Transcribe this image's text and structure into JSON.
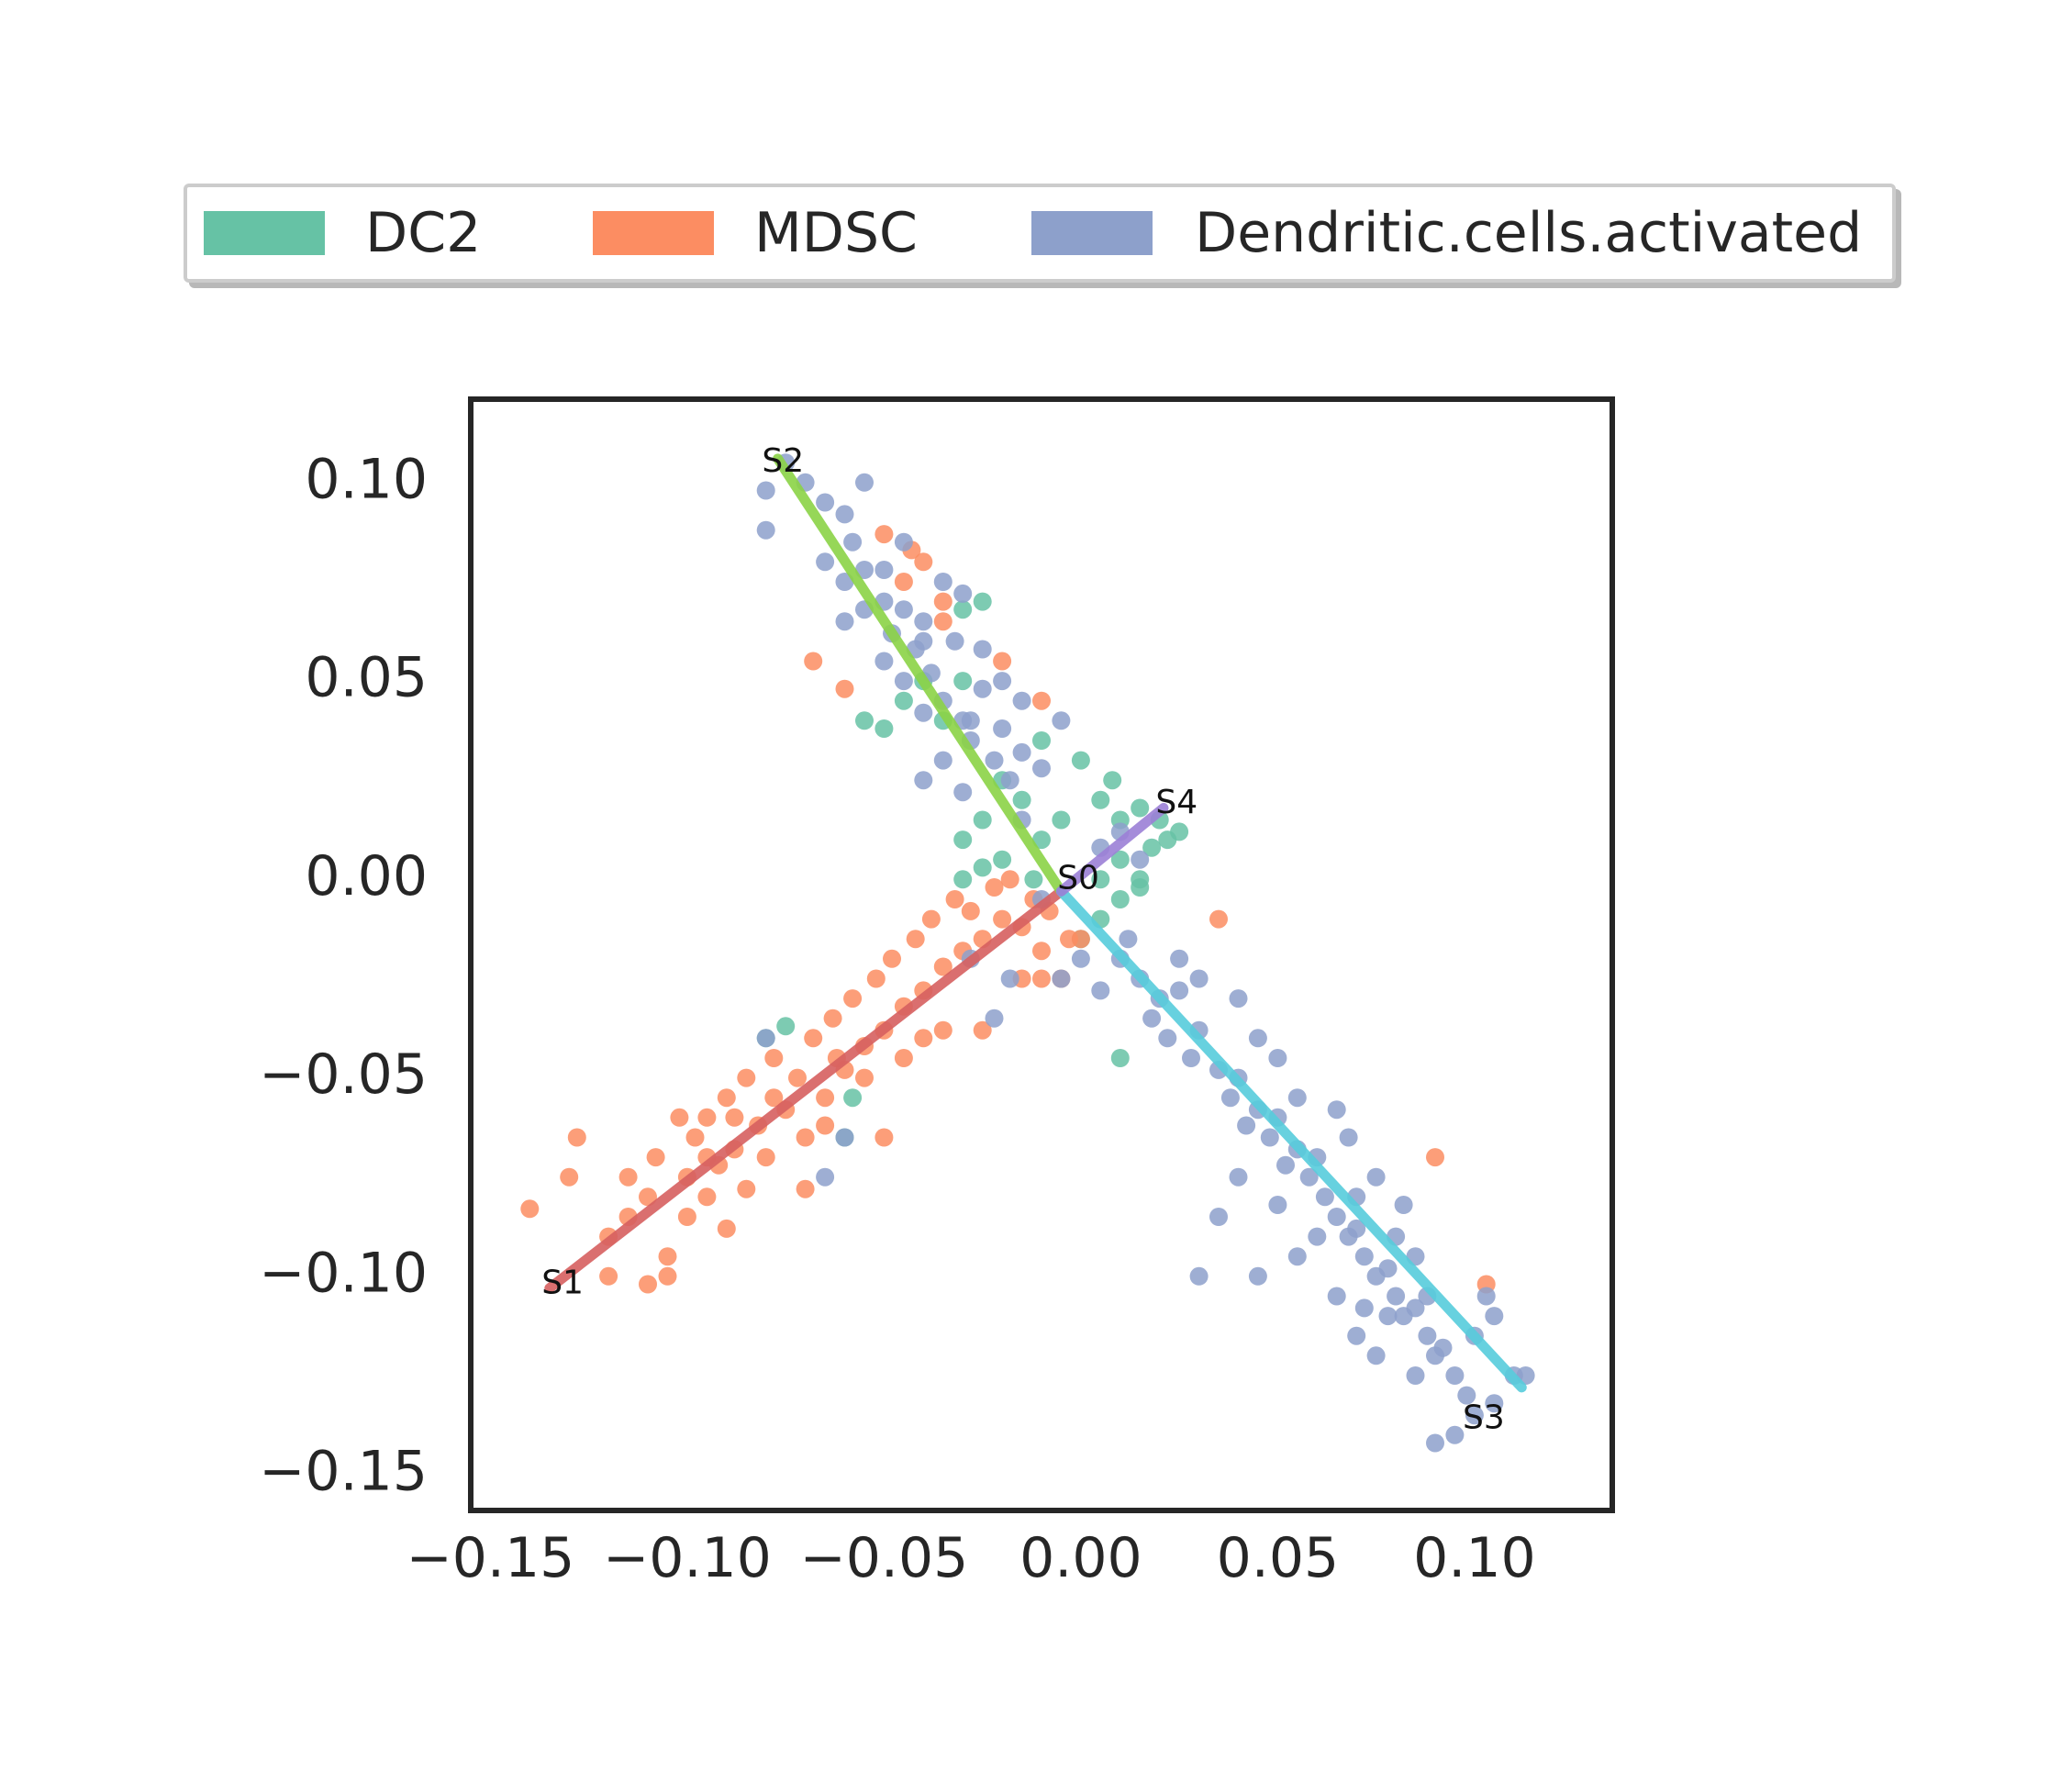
{
  "chart_data": {
    "type": "scatter",
    "title": "",
    "xlabel": "",
    "ylabel": "",
    "xlim": [
      -0.155,
      0.135
    ],
    "ylim": [
      -0.159,
      0.121
    ],
    "x_ticks": [
      -0.15,
      -0.1,
      -0.05,
      0.0,
      0.05,
      0.1
    ],
    "y_ticks": [
      -0.15,
      -0.1,
      -0.05,
      0.0,
      0.05,
      0.1
    ],
    "x_tick_labels": [
      "−0.15",
      "−0.10",
      "−0.05",
      "0.00",
      "0.05",
      "0.10"
    ],
    "y_tick_labels": [
      "−0.15",
      "−0.10",
      "−0.05",
      "0.00",
      "0.05",
      "0.10"
    ],
    "grid": false,
    "legend_position": "top-center",
    "legend": [
      {
        "name": "DC2",
        "color": "#66c2a5"
      },
      {
        "name": "MDSC",
        "color": "#fc8d62"
      },
      {
        "name": "Dendritic.cells.activated",
        "color": "#8da0cb"
      }
    ],
    "series": [
      {
        "name": "DC2",
        "color": "#66c2a5",
        "points": [
          [
            -0.03,
            0.05
          ],
          [
            -0.045,
            0.045
          ],
          [
            -0.055,
            0.04
          ],
          [
            -0.01,
            0.035
          ],
          [
            0.0,
            0.03
          ],
          [
            -0.02,
            0.025
          ],
          [
            -0.015,
            0.02
          ],
          [
            -0.025,
            0.015
          ],
          [
            -0.03,
            0.01
          ],
          [
            -0.02,
            0.005
          ],
          [
            -0.01,
            0.01
          ],
          [
            -0.005,
            0.015
          ],
          [
            0.005,
            0.02
          ],
          [
            0.01,
            0.015
          ],
          [
            0.015,
            0.018
          ],
          [
            0.02,
            0.015
          ],
          [
            0.022,
            0.01
          ],
          [
            0.025,
            0.012
          ],
          [
            0.018,
            0.008
          ],
          [
            0.01,
            0.005
          ],
          [
            0.005,
            0.0
          ],
          [
            0.01,
            -0.005
          ],
          [
            0.015,
            -0.002
          ],
          [
            -0.025,
            0.003
          ],
          [
            -0.03,
            0.0
          ],
          [
            0.0,
            -0.015
          ],
          [
            0.005,
            -0.01
          ],
          [
            -0.075,
            -0.037
          ],
          [
            -0.08,
            -0.04
          ],
          [
            -0.06,
            -0.065
          ],
          [
            -0.058,
            -0.055
          ],
          [
            0.01,
            -0.045
          ],
          [
            -0.035,
            0.04
          ],
          [
            -0.03,
            0.068
          ],
          [
            -0.025,
            0.07
          ],
          [
            -0.04,
            0.05
          ],
          [
            -0.05,
            0.038
          ],
          [
            0.015,
            0.0
          ],
          [
            -0.012,
            0.0
          ],
          [
            0.008,
            0.025
          ]
        ]
      },
      {
        "name": "MDSC",
        "color": "#fc8d62",
        "points": [
          [
            -0.14,
            -0.083
          ],
          [
            -0.13,
            -0.075
          ],
          [
            -0.128,
            -0.065
          ],
          [
            -0.12,
            -0.09
          ],
          [
            -0.115,
            -0.085
          ],
          [
            -0.11,
            -0.08
          ],
          [
            -0.108,
            -0.07
          ],
          [
            -0.105,
            -0.095
          ],
          [
            -0.1,
            -0.085
          ],
          [
            -0.1,
            -0.075
          ],
          [
            -0.098,
            -0.065
          ],
          [
            -0.095,
            -0.08
          ],
          [
            -0.095,
            -0.06
          ],
          [
            -0.092,
            -0.072
          ],
          [
            -0.09,
            -0.088
          ],
          [
            -0.09,
            -0.055
          ],
          [
            -0.088,
            -0.068
          ],
          [
            -0.085,
            -0.078
          ],
          [
            -0.085,
            -0.05
          ],
          [
            -0.082,
            -0.062
          ],
          [
            -0.08,
            -0.07
          ],
          [
            -0.078,
            -0.045
          ],
          [
            -0.075,
            -0.058
          ],
          [
            -0.072,
            -0.05
          ],
          [
            -0.07,
            -0.065
          ],
          [
            -0.068,
            -0.04
          ],
          [
            -0.065,
            -0.055
          ],
          [
            -0.063,
            -0.035
          ],
          [
            -0.06,
            -0.048
          ],
          [
            -0.058,
            -0.03
          ],
          [
            -0.055,
            -0.042
          ],
          [
            -0.052,
            -0.025
          ],
          [
            -0.05,
            -0.038
          ],
          [
            -0.048,
            -0.02
          ],
          [
            -0.045,
            -0.032
          ],
          [
            -0.042,
            -0.015
          ],
          [
            -0.04,
            -0.028
          ],
          [
            -0.038,
            -0.01
          ],
          [
            -0.035,
            -0.022
          ],
          [
            -0.032,
            -0.005
          ],
          [
            -0.03,
            -0.018
          ],
          [
            -0.028,
            -0.008
          ],
          [
            -0.025,
            -0.015
          ],
          [
            -0.022,
            -0.002
          ],
          [
            -0.02,
            -0.01
          ],
          [
            -0.018,
            0.0
          ],
          [
            -0.015,
            -0.012
          ],
          [
            -0.012,
            -0.005
          ],
          [
            -0.01,
            -0.018
          ],
          [
            -0.008,
            -0.008
          ],
          [
            -0.005,
            -0.025
          ],
          [
            -0.003,
            -0.015
          ],
          [
            -0.12,
            -0.1
          ],
          [
            -0.11,
            -0.102
          ],
          [
            -0.105,
            -0.1
          ],
          [
            -0.065,
            -0.062
          ],
          [
            -0.07,
            -0.078
          ],
          [
            -0.055,
            -0.05
          ],
          [
            -0.05,
            -0.065
          ],
          [
            -0.04,
            -0.04
          ],
          [
            -0.035,
            -0.038
          ],
          [
            -0.025,
            -0.038
          ],
          [
            -0.01,
            -0.025
          ],
          [
            0.0,
            -0.015
          ],
          [
            0.035,
            -0.01
          ],
          [
            -0.05,
            0.087
          ],
          [
            -0.043,
            0.083
          ],
          [
            -0.04,
            0.08
          ],
          [
            -0.045,
            0.075
          ],
          [
            -0.035,
            0.065
          ],
          [
            -0.035,
            0.07
          ],
          [
            -0.068,
            0.055
          ],
          [
            -0.06,
            0.048
          ],
          [
            -0.01,
            0.045
          ],
          [
            -0.02,
            0.055
          ],
          [
            0.09,
            -0.07
          ],
          [
            0.103,
            -0.102
          ],
          [
            -0.095,
            -0.07
          ],
          [
            -0.088,
            -0.06
          ],
          [
            -0.078,
            -0.055
          ],
          [
            -0.115,
            -0.075
          ],
          [
            -0.102,
            -0.06
          ],
          [
            -0.062,
            -0.045
          ],
          [
            -0.045,
            -0.045
          ],
          [
            -0.015,
            -0.025
          ]
        ]
      },
      {
        "name": "Dendritic.cells.activated",
        "color": "#8da0cb",
        "points": [
          [
            -0.075,
            0.105
          ],
          [
            -0.08,
            0.098
          ],
          [
            -0.07,
            0.1
          ],
          [
            -0.065,
            0.095
          ],
          [
            -0.06,
            0.092
          ],
          [
            -0.055,
            0.1
          ],
          [
            -0.058,
            0.085
          ],
          [
            -0.065,
            0.08
          ],
          [
            -0.06,
            0.075
          ],
          [
            -0.055,
            0.078
          ],
          [
            -0.05,
            0.07
          ],
          [
            -0.055,
            0.068
          ],
          [
            -0.06,
            0.065
          ],
          [
            -0.048,
            0.062
          ],
          [
            -0.045,
            0.068
          ],
          [
            -0.042,
            0.058
          ],
          [
            -0.05,
            0.055
          ],
          [
            -0.045,
            0.05
          ],
          [
            -0.04,
            0.06
          ],
          [
            -0.038,
            0.052
          ],
          [
            -0.035,
            0.045
          ],
          [
            -0.04,
            0.042
          ],
          [
            -0.03,
            0.04
          ],
          [
            -0.025,
            0.048
          ],
          [
            -0.028,
            0.035
          ],
          [
            -0.02,
            0.038
          ],
          [
            -0.022,
            0.03
          ],
          [
            -0.015,
            0.032
          ],
          [
            -0.018,
            0.025
          ],
          [
            -0.01,
            0.028
          ],
          [
            -0.045,
            0.085
          ],
          [
            -0.05,
            0.078
          ],
          [
            -0.035,
            0.075
          ],
          [
            -0.03,
            0.072
          ],
          [
            -0.04,
            0.065
          ],
          [
            -0.032,
            0.06
          ],
          [
            -0.025,
            0.058
          ],
          [
            -0.02,
            0.05
          ],
          [
            -0.015,
            0.045
          ],
          [
            -0.028,
            0.04
          ],
          [
            -0.035,
            0.03
          ],
          [
            -0.03,
            0.022
          ],
          [
            -0.04,
            0.025
          ],
          [
            -0.015,
            0.015
          ],
          [
            -0.005,
            0.04
          ],
          [
            0.01,
            -0.02
          ],
          [
            0.015,
            -0.025
          ],
          [
            0.02,
            -0.03
          ],
          [
            0.025,
            -0.028
          ],
          [
            0.018,
            -0.035
          ],
          [
            0.022,
            -0.04
          ],
          [
            0.028,
            -0.045
          ],
          [
            0.03,
            -0.038
          ],
          [
            0.035,
            -0.048
          ],
          [
            0.038,
            -0.055
          ],
          [
            0.04,
            -0.05
          ],
          [
            0.045,
            -0.058
          ],
          [
            0.042,
            -0.062
          ],
          [
            0.048,
            -0.065
          ],
          [
            0.05,
            -0.06
          ],
          [
            0.055,
            -0.068
          ],
          [
            0.052,
            -0.072
          ],
          [
            0.058,
            -0.075
          ],
          [
            0.06,
            -0.07
          ],
          [
            0.062,
            -0.08
          ],
          [
            0.065,
            -0.085
          ],
          [
            0.068,
            -0.09
          ],
          [
            0.07,
            -0.088
          ],
          [
            0.072,
            -0.095
          ],
          [
            0.075,
            -0.1
          ],
          [
            0.078,
            -0.098
          ],
          [
            0.08,
            -0.105
          ],
          [
            0.082,
            -0.11
          ],
          [
            0.085,
            -0.108
          ],
          [
            0.088,
            -0.115
          ],
          [
            0.09,
            -0.12
          ],
          [
            0.092,
            -0.118
          ],
          [
            0.095,
            -0.125
          ],
          [
            0.098,
            -0.13
          ],
          [
            0.1,
            -0.135
          ],
          [
            0.095,
            -0.14
          ],
          [
            0.09,
            -0.142
          ],
          [
            0.105,
            -0.132
          ],
          [
            0.11,
            -0.125
          ],
          [
            0.113,
            -0.125
          ],
          [
            0.105,
            -0.11
          ],
          [
            0.1,
            -0.115
          ],
          [
            0.103,
            -0.105
          ],
          [
            0.085,
            -0.095
          ],
          [
            0.08,
            -0.09
          ],
          [
            0.07,
            -0.08
          ],
          [
            0.06,
            -0.09
          ],
          [
            0.05,
            -0.082
          ],
          [
            0.04,
            -0.075
          ],
          [
            0.035,
            -0.085
          ],
          [
            0.03,
            -0.1
          ],
          [
            0.045,
            -0.1
          ],
          [
            0.055,
            -0.095
          ],
          [
            0.065,
            -0.105
          ],
          [
            0.07,
            -0.115
          ],
          [
            0.072,
            -0.108
          ],
          [
            0.075,
            -0.12
          ],
          [
            0.078,
            -0.11
          ],
          [
            0.085,
            -0.125
          ],
          [
            0.088,
            -0.105
          ],
          [
            0.0,
            -0.02
          ],
          [
            0.005,
            -0.028
          ],
          [
            -0.005,
            -0.025
          ],
          [
            0.025,
            -0.02
          ],
          [
            0.03,
            -0.025
          ],
          [
            0.04,
            -0.03
          ],
          [
            0.045,
            -0.04
          ],
          [
            0.05,
            -0.045
          ],
          [
            0.055,
            -0.055
          ],
          [
            0.065,
            -0.058
          ],
          [
            0.068,
            -0.065
          ],
          [
            0.075,
            -0.075
          ],
          [
            0.082,
            -0.082
          ],
          [
            -0.06,
            -0.065
          ],
          [
            -0.065,
            -0.075
          ],
          [
            -0.08,
            -0.04
          ],
          [
            -0.018,
            -0.025
          ],
          [
            -0.028,
            -0.02
          ],
          [
            -0.022,
            -0.035
          ],
          [
            -0.08,
            0.088
          ],
          [
            0.01,
            0.012
          ],
          [
            0.015,
            0.005
          ],
          [
            0.005,
            0.008
          ],
          [
            -0.01,
            -0.005
          ],
          [
            0.012,
            -0.015
          ]
        ]
      }
    ],
    "trajectories": [
      {
        "from": "S0",
        "to": "S1",
        "color": "#d65f5f",
        "points": [
          [
            -0.005,
            -0.003
          ],
          [
            -0.135,
            -0.103
          ]
        ]
      },
      {
        "from": "S0",
        "to": "S2",
        "color": "#8bd346",
        "points": [
          [
            -0.005,
            -0.003
          ],
          [
            -0.077,
            0.106
          ]
        ]
      },
      {
        "from": "S0",
        "to": "S3",
        "color": "#56ccdc",
        "points": [
          [
            -0.005,
            -0.003
          ],
          [
            0.112,
            -0.128
          ]
        ]
      },
      {
        "from": "S0",
        "to": "S4",
        "color": "#9b7fd6",
        "points": [
          [
            -0.005,
            -0.003
          ],
          [
            0.021,
            0.018
          ]
        ]
      }
    ],
    "annotations": [
      {
        "text": "S0",
        "x": -0.006,
        "y": 0.0
      },
      {
        "text": "S1",
        "x": -0.137,
        "y": -0.102
      },
      {
        "text": "S2",
        "x": -0.081,
        "y": 0.105
      },
      {
        "text": "S3",
        "x": 0.097,
        "y": -0.136
      },
      {
        "text": "S4",
        "x": 0.019,
        "y": 0.019
      }
    ]
  }
}
